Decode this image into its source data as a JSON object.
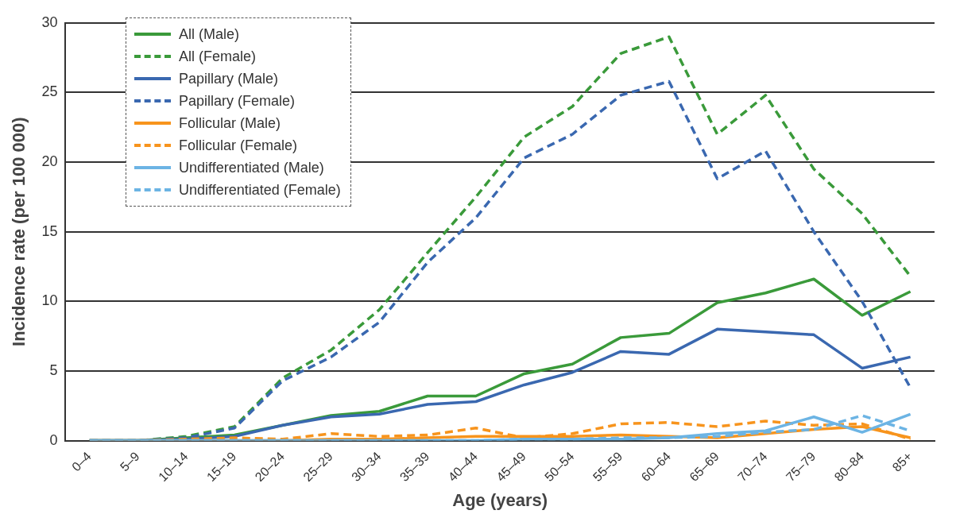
{
  "chart_data": {
    "type": "line",
    "xlabel": "Age (years)",
    "ylabel": "Incidence rate (per 100 000)",
    "categories": [
      "0–4",
      "5–9",
      "10–14",
      "15–19",
      "20–24",
      "25–29",
      "30–34",
      "35–39",
      "40–44",
      "45–49",
      "50–54",
      "55–59",
      "60–64",
      "65–69",
      "70–74",
      "75–79",
      "80–84",
      "85+"
    ],
    "ylim": [
      0,
      30
    ],
    "yticks": [
      0,
      5,
      10,
      15,
      20,
      25,
      30
    ],
    "grid": "y",
    "legend": "top left",
    "marker": "none",
    "series": [
      {
        "name": "All (Male)",
        "color": "#3a9a3a",
        "line_style": "solid",
        "values": [
          0,
          0,
          0.2,
          0.4,
          1.1,
          1.8,
          2.1,
          3.2,
          3.2,
          4.8,
          5.5,
          7.4,
          7.7,
          9.9,
          10.6,
          11.6,
          9.0,
          10.7
        ]
      },
      {
        "name": "All (Female)",
        "color": "#3a9a3a",
        "line_style": "dashed",
        "values": [
          0,
          0,
          0.3,
          1.0,
          4.5,
          6.5,
          9.4,
          13.5,
          17.5,
          21.8,
          24.0,
          27.8,
          29.0,
          22.0,
          24.8,
          19.5,
          16.3,
          11.8
        ]
      },
      {
        "name": "Papillary (Male)",
        "color": "#3a68b0",
        "line_style": "solid",
        "values": [
          0,
          0,
          0.1,
          0.3,
          1.1,
          1.7,
          1.9,
          2.6,
          2.8,
          4.0,
          4.9,
          6.4,
          6.2,
          8.0,
          7.8,
          7.6,
          5.2,
          6.0
        ]
      },
      {
        "name": "Papillary (Female)",
        "color": "#3a68b0",
        "line_style": "dashed",
        "values": [
          0,
          0,
          0.2,
          0.9,
          4.3,
          6.0,
          8.5,
          12.8,
          16.0,
          20.3,
          22.0,
          24.8,
          25.8,
          18.8,
          20.8,
          15.0,
          10.0,
          3.8
        ]
      },
      {
        "name": "Follicular (Male)",
        "color": "#f7941d",
        "line_style": "solid",
        "values": [
          0,
          0,
          0,
          0,
          0,
          0.1,
          0.1,
          0.2,
          0.3,
          0.3,
          0.3,
          0.4,
          0.3,
          0.2,
          0.5,
          0.8,
          1.0,
          0.2
        ]
      },
      {
        "name": "Follicular (Female)",
        "color": "#f7941d",
        "line_style": "dashed",
        "values": [
          0,
          0,
          0.1,
          0.2,
          0.1,
          0.5,
          0.3,
          0.4,
          0.9,
          0.2,
          0.5,
          1.2,
          1.3,
          1.0,
          1.4,
          1.1,
          1.2,
          0.1
        ]
      },
      {
        "name": "Undifferentiated (Male)",
        "color": "#6cb4e4",
        "line_style": "solid",
        "values": [
          0,
          0,
          0,
          0,
          0,
          0,
          0,
          0,
          0,
          0.1,
          0.1,
          0.1,
          0.2,
          0.5,
          0.7,
          1.7,
          0.6,
          1.9
        ]
      },
      {
        "name": "Undifferentiated (Female)",
        "color": "#6cb4e4",
        "line_style": "dashed",
        "values": [
          0,
          0,
          0,
          0,
          0,
          0,
          0,
          0,
          0,
          0.1,
          0.1,
          0.2,
          0.2,
          0.3,
          0.6,
          0.8,
          1.8,
          0.7
        ]
      }
    ]
  }
}
